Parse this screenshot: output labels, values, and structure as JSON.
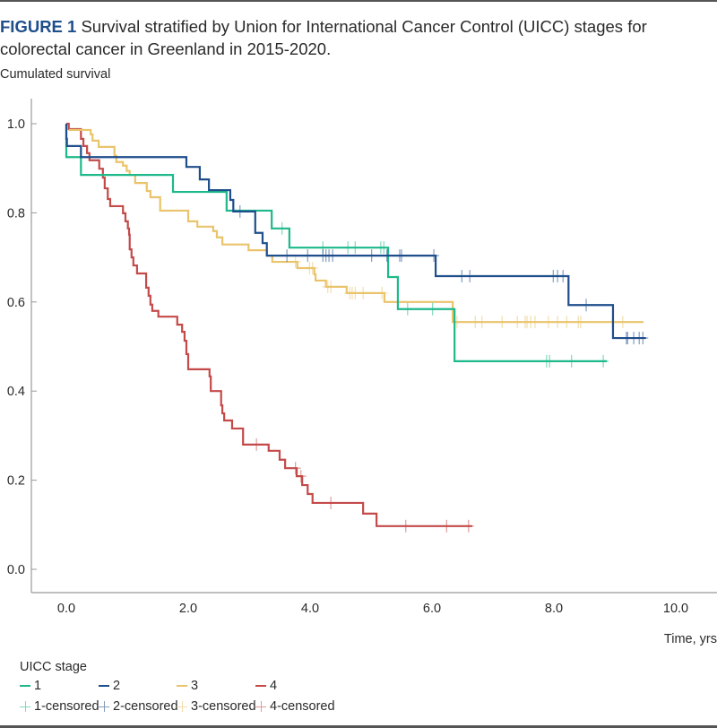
{
  "figure": {
    "label": "FIGURE 1",
    "caption": " Survival stratified by Union for International Cancer Control (UICC) stages for colorectal cancer in Greenland in 2015-2020."
  },
  "chart_data": {
    "type": "line",
    "subtype": "kaplan-meier-step",
    "title": "Survival stratified by Union for International Cancer Control (UICC) stages for colorectal cancer in Greenland in 2015-2020.",
    "xlabel": "Time, yrs",
    "ylabel": "Cumulated survival",
    "xlim": [
      -0.55,
      10.7
    ],
    "ylim": [
      -0.05,
      1.05
    ],
    "xticks": [
      0,
      2,
      4,
      6,
      8,
      10
    ],
    "xtick_labels": [
      "0.0",
      "2.0",
      "4.0",
      "6.0",
      "8.0",
      "10.0"
    ],
    "yticks": [
      0,
      0.2,
      0.4,
      0.6,
      0.8,
      1.0
    ],
    "ytick_labels": [
      "0.0",
      "0.2",
      "0.4",
      "0.6",
      "0.8",
      "1.0"
    ],
    "grid": false,
    "legend_title": "UICC stage",
    "legend_position": "bottom",
    "series": [
      {
        "name": "1",
        "censored_name": "1-censored",
        "color": "#1db98a",
        "steps": [
          [
            0,
            1.0
          ],
          [
            0,
            0.925
          ],
          [
            0.24,
            0.885
          ],
          [
            1.75,
            0.847
          ],
          [
            2.63,
            0.805
          ],
          [
            3.37,
            0.765
          ],
          [
            3.66,
            0.722
          ],
          [
            5.28,
            0.656
          ],
          [
            5.44,
            0.584
          ],
          [
            6.37,
            0.467
          ]
        ],
        "end": 8.87,
        "censored": [
          3.54,
          4.21,
          4.62,
          4.74,
          5.16,
          5.21,
          5.6,
          6.01,
          7.88,
          7.93,
          8.29,
          8.81
        ]
      },
      {
        "name": "2",
        "censored_name": "2-censored",
        "color": "#1f4e8c",
        "steps": [
          [
            0,
            1.0
          ],
          [
            0,
            0.966
          ],
          [
            0.01,
            0.95
          ],
          [
            0.24,
            0.925
          ],
          [
            1.97,
            0.903
          ],
          [
            2.19,
            0.875
          ],
          [
            2.34,
            0.851
          ],
          [
            2.69,
            0.829
          ],
          [
            2.74,
            0.803
          ],
          [
            3.1,
            0.755
          ],
          [
            3.22,
            0.732
          ],
          [
            3.29,
            0.704
          ],
          [
            6.06,
            0.658
          ],
          [
            8.24,
            0.593
          ],
          [
            8.97,
            0.519
          ]
        ],
        "end": 9.51,
        "censored": [
          2.85,
          3.62,
          3.96,
          4.21,
          4.26,
          4.31,
          4.37,
          5.01,
          5.26,
          5.47,
          5.5,
          6.03,
          6.49,
          6.62,
          7.99,
          8.06,
          8.15,
          8.53,
          9.19,
          9.21,
          9.31,
          9.4,
          9.46
        ]
      },
      {
        "name": "3",
        "censored_name": "3-censored",
        "color": "#e9c46a",
        "steps": [
          [
            0.04,
            0.986
          ],
          [
            0.4,
            0.976
          ],
          [
            0.43,
            0.962
          ],
          [
            0.53,
            0.948
          ],
          [
            0.79,
            0.928
          ],
          [
            0.82,
            0.914
          ],
          [
            0.93,
            0.906
          ],
          [
            0.99,
            0.894
          ],
          [
            1.04,
            0.885
          ],
          [
            1.13,
            0.867
          ],
          [
            1.32,
            0.849
          ],
          [
            1.38,
            0.835
          ],
          [
            1.54,
            0.805
          ],
          [
            2.0,
            0.781
          ],
          [
            2.15,
            0.769
          ],
          [
            2.41,
            0.759
          ],
          [
            2.47,
            0.745
          ],
          [
            2.56,
            0.729
          ],
          [
            2.99,
            0.716
          ],
          [
            3.29,
            0.704
          ],
          [
            3.38,
            0.69
          ],
          [
            3.79,
            0.676
          ],
          [
            4.07,
            0.662
          ],
          [
            4.09,
            0.648
          ],
          [
            4.26,
            0.634
          ],
          [
            4.6,
            0.62
          ],
          [
            5.22,
            0.6
          ],
          [
            6.34,
            0.555
          ]
        ],
        "end": 9.47,
        "censored": [
          3.76,
          3.99,
          4.04,
          4.29,
          4.34,
          4.65,
          4.69,
          4.74,
          4.87,
          5.18,
          6.41,
          6.71,
          6.82,
          7.15,
          7.4,
          7.53,
          7.56,
          7.62,
          7.69,
          7.91,
          8.06,
          8.21,
          8.4,
          8.44,
          8.96,
          9.13
        ]
      },
      {
        "name": "4",
        "censored_name": "4-censored",
        "color": "#c44a4a",
        "steps": [
          [
            0,
            1.0
          ],
          [
            0.04,
            0.988
          ],
          [
            0.24,
            0.966
          ],
          [
            0.28,
            0.95
          ],
          [
            0.34,
            0.934
          ],
          [
            0.38,
            0.918
          ],
          [
            0.54,
            0.899
          ],
          [
            0.6,
            0.879
          ],
          [
            0.63,
            0.855
          ],
          [
            0.68,
            0.831
          ],
          [
            0.72,
            0.815
          ],
          [
            0.93,
            0.799
          ],
          [
            0.97,
            0.781
          ],
          [
            1.01,
            0.765
          ],
          [
            1.03,
            0.751
          ],
          [
            1.04,
            0.718
          ],
          [
            1.07,
            0.7
          ],
          [
            1.1,
            0.682
          ],
          [
            1.16,
            0.664
          ],
          [
            1.31,
            0.632
          ],
          [
            1.35,
            0.614
          ],
          [
            1.38,
            0.594
          ],
          [
            1.41,
            0.58
          ],
          [
            1.51,
            0.567
          ],
          [
            1.82,
            0.549
          ],
          [
            1.9,
            0.533
          ],
          [
            1.94,
            0.513
          ],
          [
            1.97,
            0.483
          ],
          [
            2.0,
            0.449
          ],
          [
            2.35,
            0.433
          ],
          [
            2.37,
            0.4
          ],
          [
            2.54,
            0.368
          ],
          [
            2.56,
            0.35
          ],
          [
            2.59,
            0.334
          ],
          [
            2.72,
            0.316
          ],
          [
            2.9,
            0.28
          ],
          [
            3.32,
            0.266
          ],
          [
            3.5,
            0.246
          ],
          [
            3.59,
            0.227
          ],
          [
            3.78,
            0.209
          ],
          [
            3.87,
            0.189
          ],
          [
            3.96,
            0.169
          ],
          [
            4.04,
            0.149
          ],
          [
            4.87,
            0.125
          ],
          [
            5.09,
            0.097
          ]
        ],
        "end": 6.66,
        "censored": [
          3.12,
          3.76,
          3.85,
          4.34,
          5.57,
          6.24,
          6.6
        ]
      }
    ]
  }
}
